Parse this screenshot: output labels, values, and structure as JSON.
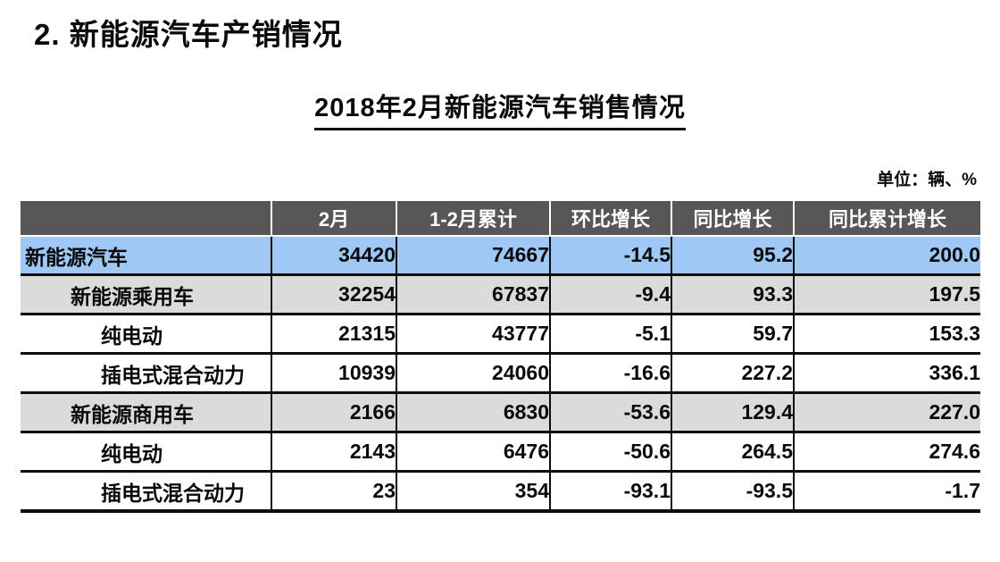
{
  "page": {
    "title": "2. 新能源汽车产销情况",
    "subtitle": "2018年2月新能源汽车销售情况",
    "unit_label": "单位：辆、%"
  },
  "table": {
    "columns": [
      "",
      "2月",
      "1-2月累计",
      "环比增长",
      "同比增长",
      "同比累计增长"
    ],
    "rows": [
      {
        "label": "新能源汽车",
        "indent": 0,
        "style": "blue",
        "values": [
          "34420",
          "74667",
          "-14.5",
          "95.2",
          "200.0"
        ]
      },
      {
        "label": "新能源乘用车",
        "indent": 1,
        "style": "gray",
        "values": [
          "32254",
          "67837",
          "-9.4",
          "93.3",
          "197.5"
        ]
      },
      {
        "label": "纯电动",
        "indent": 2,
        "style": "plain",
        "values": [
          "21315",
          "43777",
          "-5.1",
          "59.7",
          "153.3"
        ]
      },
      {
        "label": "插电式混合动力",
        "indent": 2,
        "style": "plain",
        "values": [
          "10939",
          "24060",
          "-16.6",
          "227.2",
          "336.1"
        ]
      },
      {
        "label": "新能源商用车",
        "indent": 1,
        "style": "gray",
        "values": [
          "2166",
          "6830",
          "-53.6",
          "129.4",
          "227.0"
        ]
      },
      {
        "label": "纯电动",
        "indent": 2,
        "style": "plain",
        "values": [
          "2143",
          "6476",
          "-50.6",
          "264.5",
          "274.6"
        ]
      },
      {
        "label": "插电式混合动力",
        "indent": 2,
        "style": "plain",
        "values": [
          "23",
          "354",
          "-93.1",
          "-93.5",
          "-1.7"
        ]
      }
    ]
  },
  "colors": {
    "header_bg": "#575757",
    "header_text": "#ffffff",
    "row_highlight_blue": "#9fc9f4",
    "row_highlight_gray": "#dbdbdb",
    "border": "#0d0d0d",
    "text": "#0a0a0a"
  }
}
